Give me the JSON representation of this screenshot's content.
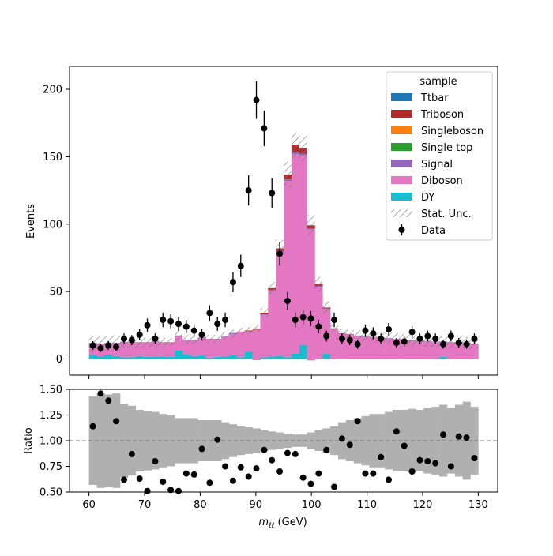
{
  "chart_data": [
    {
      "type": "bar",
      "panel": "main",
      "ylabel": "Events",
      "ylim": [
        -12,
        217
      ],
      "xlim": [
        56.5,
        133.5
      ],
      "yticks": [
        0,
        50,
        100,
        150,
        200
      ],
      "bins": {
        "start": 60,
        "width": 1.4,
        "count": 50
      },
      "stack_order_bottom_to_top": [
        "DY",
        "Diboson",
        "Signal",
        "Single top",
        "Singleboson",
        "Triboson",
        "Ttbar"
      ],
      "series": [
        {
          "name": "DY",
          "color": "#17becf",
          "values": [
            3.2,
            2.0,
            3.0,
            2.2,
            1.2,
            1.3,
            2.2,
            1.5,
            1.8,
            1.8,
            1.5,
            6.5,
            3.5,
            2.2,
            2.6,
            1.0,
            1.6,
            2.0,
            2.8,
            1.3,
            5.5,
            -0.8,
            1.2,
            1.8,
            2.3,
            1.3,
            4.0,
            10.5,
            -1.0,
            0,
            3.8,
            0,
            0,
            0,
            0,
            0,
            0,
            0,
            0,
            0,
            0,
            0,
            0,
            0,
            0,
            1.5,
            0,
            0,
            0,
            0
          ]
        },
        {
          "name": "Diboson",
          "color": "#e377c2",
          "values": [
            8.3,
            9.0,
            8.5,
            9.3,
            10.8,
            10.7,
            9.8,
            10.5,
            11.2,
            10.2,
            10.5,
            10.5,
            10.5,
            11.3,
            12.9,
            13.5,
            12.9,
            14.5,
            15.7,
            18.2,
            14.7,
            22.3,
            31.6,
            48.7,
            76.7,
            130.7,
            148.0,
            140.5,
            97.0,
            53.5,
            33.2,
            22.0,
            18.5,
            18.0,
            17.0,
            16.5,
            16.0,
            15.5,
            15.0,
            14.5,
            14.0,
            13.5,
            13.0,
            13.0,
            12.5,
            11.0,
            12.0,
            12.0,
            11.5,
            11.0
          ]
        },
        {
          "name": "Signal",
          "color": "#9467bd",
          "values": [
            0.4,
            0.4,
            0.4,
            0.4,
            0.4,
            0.4,
            0.4,
            0.4,
            0.4,
            0.4,
            0.4,
            0.4,
            0.4,
            0.4,
            0.4,
            0.4,
            0.4,
            0.4,
            0.5,
            0.5,
            0.5,
            0.6,
            0.7,
            0.8,
            1.0,
            1.3,
            1.5,
            1.3,
            0.9,
            0.6,
            0.5,
            0.4,
            0.4,
            0.4,
            0.4,
            0.4,
            0.4,
            0.4,
            0.4,
            0.4,
            0.4,
            0.4,
            0.4,
            0.4,
            0.4,
            0.4,
            0.4,
            0.4,
            0.4,
            0.4
          ]
        },
        {
          "name": "Single top",
          "color": "#2ca02c",
          "values": [
            0,
            0,
            0,
            0,
            0,
            0,
            0,
            0,
            0,
            0,
            0,
            0,
            0,
            0,
            0,
            0,
            0,
            0,
            0,
            0,
            0,
            0,
            0,
            0,
            0,
            0,
            0,
            0,
            0,
            0,
            0,
            0,
            0,
            0,
            0,
            0,
            0,
            0,
            0,
            0,
            0,
            0,
            0,
            0,
            0,
            0,
            0,
            0,
            0,
            0
          ]
        },
        {
          "name": "Singleboson",
          "color": "#ff7f0e",
          "values": [
            0,
            0,
            0,
            0,
            0,
            0,
            0,
            0,
            0,
            0,
            0,
            0,
            0,
            0,
            0,
            0,
            0,
            0,
            0,
            0,
            0,
            0,
            0,
            0,
            0,
            0,
            0,
            0,
            0,
            0,
            0,
            0,
            0,
            0,
            0,
            0,
            0,
            0,
            0,
            0,
            0,
            0,
            0,
            0,
            0,
            0,
            0,
            0,
            0,
            0
          ]
        },
        {
          "name": "Triboson",
          "color": "#b22a2a",
          "values": [
            0,
            0,
            0,
            0,
            0,
            0,
            0,
            0,
            0,
            0,
            0,
            0,
            0,
            0,
            0,
            0,
            0,
            0,
            0.2,
            0.3,
            0.4,
            0.5,
            0.8,
            1.2,
            2.0,
            3.5,
            5.0,
            3.8,
            2.2,
            1.2,
            0.6,
            0.3,
            0.2,
            0.1,
            0,
            0,
            0,
            0,
            0,
            0,
            0,
            0,
            0,
            0,
            0,
            0,
            0,
            0,
            0,
            0
          ]
        },
        {
          "name": "Ttbar",
          "color": "#1f77b4",
          "values": [
            0,
            0,
            0,
            0,
            0,
            0,
            0,
            0,
            0,
            0,
            0,
            0,
            0,
            0,
            0,
            0,
            0,
            0,
            0,
            0,
            0,
            0,
            0,
            0,
            0,
            0,
            0,
            0,
            0,
            0,
            0,
            0,
            0,
            0,
            0,
            0,
            0,
            0,
            0,
            0,
            0,
            0,
            0,
            0,
            0,
            0,
            0,
            0,
            0,
            0
          ]
        }
      ],
      "stat_unc_rel": [
        0.43,
        0.46,
        0.45,
        0.46,
        0.36,
        0.34,
        0.3,
        0.29,
        0.28,
        0.26,
        0.25,
        0.22,
        0.22,
        0.22,
        0.2,
        0.2,
        0.2,
        0.18,
        0.16,
        0.14,
        0.13,
        0.12,
        0.1,
        0.09,
        0.08,
        0.07,
        0.06,
        0.06,
        0.08,
        0.1,
        0.12,
        0.14,
        0.18,
        0.2,
        0.22,
        0.24,
        0.26,
        0.26,
        0.28,
        0.3,
        0.3,
        0.31,
        0.3,
        0.32,
        0.33,
        0.35,
        0.32,
        0.35,
        0.38,
        0.33
      ],
      "data": {
        "name": "Data",
        "x": [
          60.7,
          62.1,
          63.5,
          64.9,
          66.3,
          67.7,
          69.1,
          70.5,
          71.9,
          73.3,
          74.7,
          76.1,
          77.5,
          78.9,
          80.3,
          81.7,
          83.1,
          84.5,
          85.9,
          87.3,
          88.7,
          90.1,
          91.5,
          92.9,
          94.3,
          95.7,
          97.1,
          98.5,
          99.9,
          101.3,
          102.7,
          104.1,
          105.5,
          106.9,
          108.3,
          109.7,
          111.1,
          112.5,
          113.9,
          115.3,
          116.7,
          118.1,
          119.5,
          120.9,
          122.3,
          123.7,
          125.1,
          126.5,
          127.9,
          129.3
        ],
        "y": [
          10,
          8,
          10,
          9,
          15,
          14,
          18,
          25,
          15,
          29,
          28,
          26,
          24,
          21,
          18,
          34,
          26,
          29,
          57,
          69,
          125,
          192,
          171,
          123,
          78,
          43,
          29,
          31,
          30,
          24,
          17,
          29,
          15,
          14,
          11,
          21,
          19,
          15,
          22,
          12,
          13,
          20,
          15,
          17,
          15,
          11,
          17,
          12,
          11,
          15
        ],
        "yerr": [
          3.2,
          2.9,
          3.2,
          3.0,
          3.9,
          3.7,
          4.2,
          5.0,
          3.9,
          5.4,
          5.3,
          5.1,
          4.9,
          4.6,
          4.2,
          5.8,
          5.1,
          5.4,
          7.5,
          8.3,
          11.2,
          13.9,
          13.1,
          11.1,
          8.8,
          6.6,
          5.4,
          5.6,
          5.5,
          4.9,
          4.1,
          5.4,
          3.9,
          3.7,
          3.3,
          4.6,
          4.4,
          3.9,
          4.7,
          3.5,
          3.6,
          4.5,
          3.9,
          4.1,
          3.9,
          3.3,
          4.1,
          3.5,
          3.3,
          3.9
        ]
      },
      "legend": {
        "title": "sample",
        "position": "top-right",
        "entries": [
          "Ttbar",
          "Triboson",
          "Singleboson",
          "Single top",
          "Signal",
          "Diboson",
          "DY",
          "Stat. Unc.",
          "Data"
        ]
      }
    },
    {
      "type": "scatter",
      "panel": "ratio",
      "xlabel": "m_{ℓℓ} (GeV)",
      "ylabel": "Ratio",
      "ylim": [
        0.5,
        1.5
      ],
      "xlim": [
        56.5,
        133.5
      ],
      "yticks": [
        0.5,
        0.75,
        1.0,
        1.25,
        1.5
      ],
      "xticks": [
        60,
        70,
        80,
        90,
        100,
        110,
        120,
        130
      ],
      "reference_line": 1.0,
      "ratio": {
        "x": [
          60.7,
          62.1,
          63.5,
          64.9,
          66.3,
          67.7,
          69.1,
          70.5,
          71.9,
          73.3,
          74.7,
          76.1,
          77.5,
          78.9,
          80.3,
          81.7,
          83.1,
          84.5,
          85.9,
          87.3,
          88.7,
          90.1,
          91.5,
          92.9,
          94.3,
          95.7,
          97.1,
          98.5,
          99.9,
          101.3,
          102.7,
          104.1,
          105.5,
          106.9,
          108.3,
          109.7,
          111.1,
          112.5,
          113.9,
          115.3,
          116.7,
          118.1,
          119.5,
          120.9,
          122.3,
          123.7,
          125.1,
          126.5,
          127.9,
          129.3
        ],
        "y": [
          1.14,
          1.46,
          1.39,
          1.19,
          0.62,
          0.87,
          0.63,
          0.51,
          0.8,
          0.6,
          0.52,
          0.51,
          0.68,
          0.67,
          0.92,
          0.59,
          1.01,
          0.75,
          0.61,
          0.74,
          0.65,
          0.73,
          0.91,
          0.81,
          0.7,
          0.88,
          0.87,
          0.64,
          0.58,
          0.68,
          0.91,
          0.55,
          1.02,
          0.96,
          1.19,
          0.68,
          0.68,
          0.84,
          0.62,
          1.09,
          0.95,
          0.7,
          0.81,
          0.8,
          0.78,
          1.06,
          0.75,
          1.04,
          1.03,
          0.83
        ]
      }
    }
  ]
}
